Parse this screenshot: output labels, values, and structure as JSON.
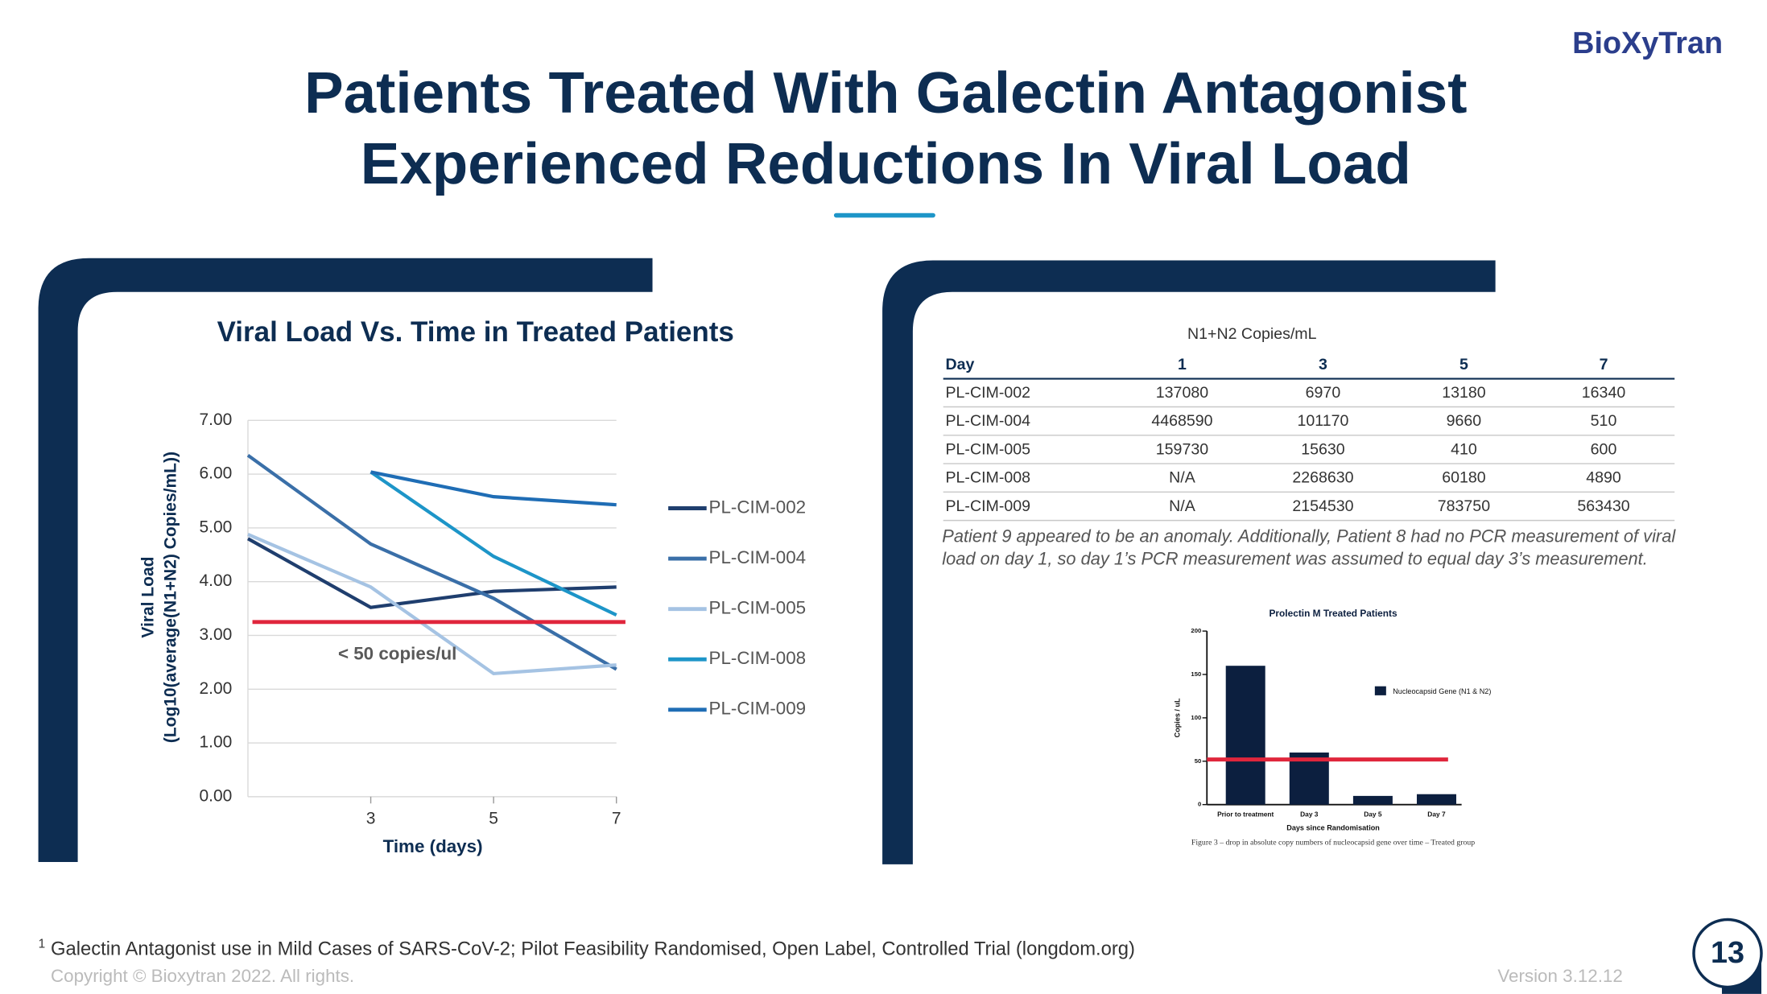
{
  "logo": "BioXyTran",
  "title_lines": [
    "Patients Treated With Galectin Antagonist",
    "Experienced Reductions In Viral Load"
  ],
  "chart_data": [
    {
      "type": "line",
      "title": "Viral Load Vs. Time in Treated Patients",
      "x_label": "Time (days)",
      "y_label": [
        "Viral Load",
        "(Log10(average(N1+N2) Copies/mL))"
      ],
      "x": [
        1,
        3,
        5,
        7
      ],
      "xlim": [
        1,
        7
      ],
      "xticks": [
        3,
        5,
        7
      ],
      "ylim": [
        0,
        7
      ],
      "yticks": [
        {
          "value": 0,
          "label": "0.00"
        },
        {
          "value": 1,
          "label": "1.00"
        },
        {
          "value": 2,
          "label": "2.00"
        },
        {
          "value": 3,
          "label": "3.00"
        },
        {
          "value": 4,
          "label": "4.00"
        },
        {
          "value": 5,
          "label": "5.00"
        },
        {
          "value": 6,
          "label": "6.00"
        },
        {
          "value": 7,
          "label": "7.00"
        }
      ],
      "grid": true,
      "legend": "right",
      "series": [
        {
          "name": "PL-CIM-002",
          "color": "#1f3e6e",
          "values": [
            4.8,
            3.52,
            3.82,
            3.9
          ]
        },
        {
          "name": "PL-CIM-004",
          "color": "#3a6fa8",
          "values": [
            6.35,
            4.7,
            3.69,
            2.37
          ]
        },
        {
          "name": "PL-CIM-005",
          "color": "#a5c3e3",
          "values": [
            4.88,
            3.9,
            2.29,
            2.45
          ]
        },
        {
          "name": "PL-CIM-008",
          "color": "#1d95c8",
          "values": [
            null,
            6.04,
            4.47,
            3.38
          ]
        },
        {
          "name": "PL-CIM-009",
          "color": "#1f6db5",
          "values": [
            null,
            6.04,
            5.58,
            5.43
          ]
        }
      ],
      "threshold": {
        "value": 3.25,
        "label": "< 50 copies/ul",
        "color": "#e0263c"
      }
    },
    {
      "type": "bar",
      "title": "Prolectin M Treated Patients",
      "categories": [
        "Prior to treatment",
        "Day 3",
        "Day 5",
        "Day 7"
      ],
      "series": [
        {
          "name": "Nucleocapsid Gene (N1 & N2)",
          "color": "#0c1f3f",
          "values": [
            160,
            60,
            10,
            12
          ]
        }
      ],
      "ylim": [
        0,
        200
      ],
      "yticks": [
        0,
        50,
        100,
        150,
        200
      ],
      "y_label": "Copies / uL",
      "x_label": "Days since Randomisation",
      "threshold": {
        "value": 52,
        "color": "#e0263c"
      },
      "caption": "Figure 3 – drop in absolute copy numbers of nucleocapsid gene over time – Treated group"
    }
  ],
  "table": {
    "caption": "N1+N2 Copies/mL",
    "header": [
      "Day",
      "1",
      "3",
      "5",
      "7"
    ],
    "rows": [
      [
        "PL-CIM-002",
        "137080",
        "6970",
        "13180",
        "16340"
      ],
      [
        "PL-CIM-004",
        "4468590",
        "101170",
        "9660",
        "510"
      ],
      [
        "PL-CIM-005",
        "159730",
        "15630",
        "410",
        "600"
      ],
      [
        "PL-CIM-008",
        "N/A",
        "2268630",
        "60180",
        "4890"
      ],
      [
        "PL-CIM-009",
        "N/A",
        "2154530",
        "783750",
        "563430"
      ]
    ]
  },
  "note": "Patient 9 appeared to be an anomaly. Additionally, Patient 8 had no PCR measurement of viral load on day 1, so day 1’s PCR measurement was assumed to equal day 3’s measurement.",
  "footnote": {
    "marker": "1",
    "text": "Galectin Antagonist use in Mild Cases of SARS-CoV-2; Pilot Feasibility Randomised, Open Label, Controlled Trial (longdom.org)"
  },
  "copyright": "Copyright © Bioxytran 2022. All rights.",
  "version": "Version 3.12.12",
  "page_number": "13"
}
